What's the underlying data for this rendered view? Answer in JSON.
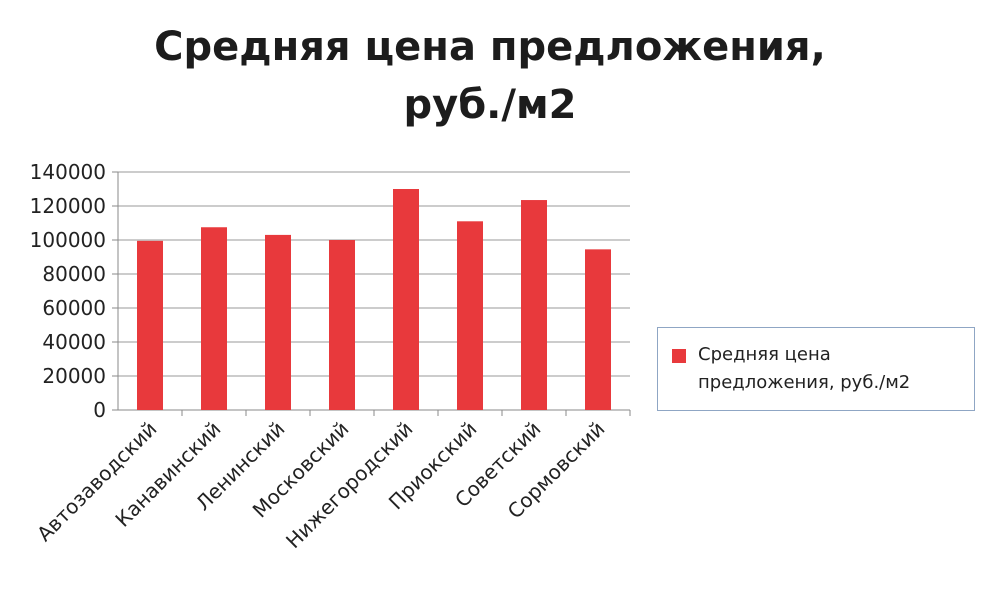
{
  "chart_data": {
    "type": "bar",
    "title": "Средняя цена предложения,\nруб./м2",
    "categories": [
      "Автозаводский",
      "Канавинский",
      "Ленинский",
      "Московский",
      "Нижегородский",
      "Приокский",
      "Советский",
      "Сормовский"
    ],
    "series": [
      {
        "name": "Средняя цена предложения, руб./м2",
        "values": [
          99500,
          107500,
          103000,
          100000,
          130000,
          111000,
          123500,
          94500
        ],
        "color": "#e8393c"
      }
    ],
    "yticks": [
      0,
      20000,
      40000,
      60000,
      80000,
      100000,
      120000,
      140000
    ],
    "ylim": [
      0,
      140000
    ],
    "grid": true,
    "legend_position": "right"
  }
}
